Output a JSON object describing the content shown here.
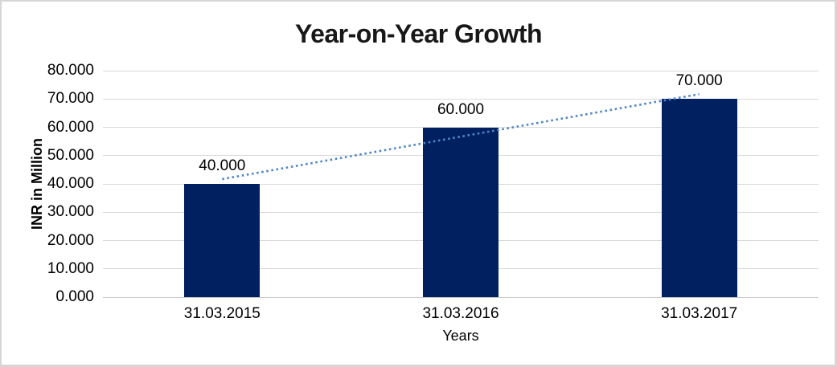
{
  "chart_data": {
    "type": "bar",
    "title": "Year-on-Year Growth",
    "xlabel": "Years",
    "ylabel": "INR in Million",
    "categories": [
      "31.03.2015",
      "31.03.2016",
      "31.03.2017"
    ],
    "values": [
      40,
      60,
      70
    ],
    "data_labels": [
      "40.000",
      "60.000",
      "70.000"
    ],
    "y_ticks": [
      "0.000",
      "10.000",
      "20.000",
      "30.000",
      "40.000",
      "50.000",
      "60.000",
      "70.000",
      "80.000"
    ],
    "ylim": [
      0,
      80
    ],
    "grid": true,
    "legend": "none",
    "colors": {
      "bar": "#002060",
      "gridline": "#d9d9d9",
      "axis_line": "#c9c9c9",
      "trendline": "#4e86c8",
      "text": "#000000",
      "frame_border": "#d6d6d6"
    },
    "trendline": {
      "type": "linear",
      "style": "dotted",
      "start_value": 41.7,
      "end_value": 71.7
    }
  }
}
